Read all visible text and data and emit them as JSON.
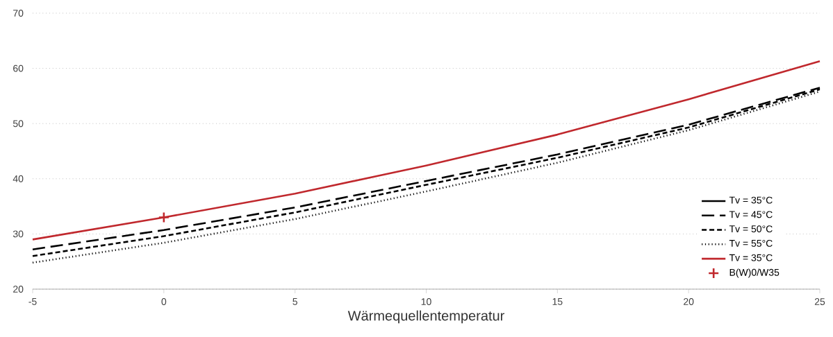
{
  "chart_data": {
    "type": "line",
    "xlabel": "Wärmequellentemperatur",
    "x": [
      -5,
      0,
      5,
      10,
      15,
      20,
      25
    ],
    "xlim": [
      -5,
      25
    ],
    "xticks": [
      -5,
      0,
      5,
      10,
      15,
      20,
      25
    ],
    "ylim": [
      20,
      70
    ],
    "yticks": [
      20,
      30,
      40,
      50,
      60,
      70
    ],
    "grid": "y",
    "legend": "bottom right",
    "series": [
      {
        "name": "Tv = 35°C",
        "color": "#000000",
        "line_style": "solid",
        "values": [
          null,
          null,
          null,
          null,
          null,
          null,
          null
        ]
      },
      {
        "name": "Tv = 45°C",
        "color": "#000000",
        "line_style": "dashed",
        "values": [
          27.2,
          30.7,
          34.8,
          39.6,
          44.4,
          49.8,
          56.5
        ]
      },
      {
        "name": "Tv = 50°C",
        "color": "#000000",
        "line_style": "dashed",
        "values": [
          26.0,
          29.6,
          33.9,
          38.9,
          43.8,
          49.3,
          56.2
        ]
      },
      {
        "name": "Tv = 55°C",
        "color": "#000000",
        "line_style": "dotted",
        "values": [
          24.8,
          28.4,
          32.7,
          37.7,
          42.9,
          48.8,
          55.8
        ]
      },
      {
        "name": "Tv = 35°C",
        "color": "#c0282d",
        "line_style": "solid",
        "values": [
          29.0,
          33.0,
          37.3,
          42.4,
          48.0,
          54.4,
          61.3
        ]
      },
      {
        "name": "B(W)0/W35",
        "type": "scatter",
        "marker": "cross",
        "color": "#c0282d",
        "x": [
          0
        ],
        "values": [
          33.0
        ]
      }
    ]
  }
}
